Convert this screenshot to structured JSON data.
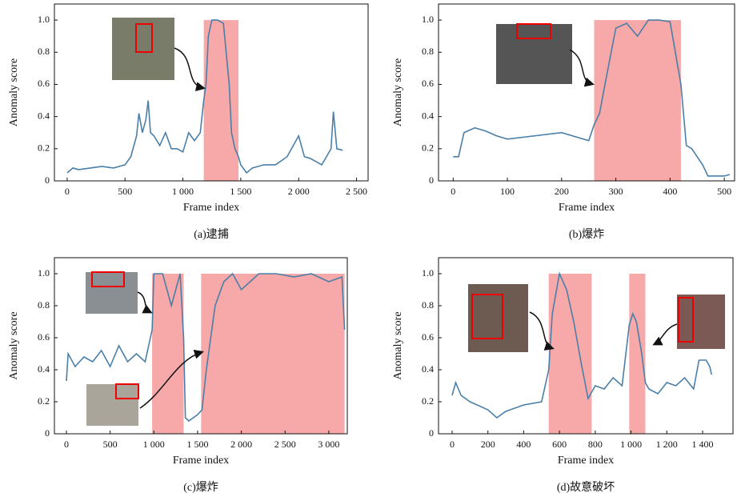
{
  "chart_data": [
    {
      "type": "line",
      "caption": "(a)逮捕",
      "xlabel": "Frame index",
      "ylabel": "Anomaly score",
      "color": "#4a7fa8",
      "shade_color": "#f7a8a8",
      "x": [
        0,
        50,
        100,
        200,
        300,
        400,
        500,
        550,
        600,
        620,
        650,
        680,
        700,
        720,
        750,
        800,
        850,
        900,
        950,
        1000,
        1050,
        1100,
        1150,
        1180,
        1200,
        1220,
        1250,
        1300,
        1350,
        1400,
        1420,
        1450,
        1480,
        1500,
        1550,
        1600,
        1700,
        1800,
        1900,
        2000,
        2050,
        2100,
        2200,
        2280,
        2300,
        2330,
        2380
      ],
      "values": [
        0.05,
        0.08,
        0.07,
        0.08,
        0.09,
        0.08,
        0.1,
        0.15,
        0.28,
        0.42,
        0.3,
        0.38,
        0.5,
        0.3,
        0.28,
        0.22,
        0.3,
        0.2,
        0.2,
        0.18,
        0.3,
        0.25,
        0.3,
        0.5,
        0.6,
        0.9,
        1.0,
        1.0,
        0.98,
        0.6,
        0.3,
        0.2,
        0.15,
        0.1,
        0.05,
        0.08,
        0.1,
        0.1,
        0.15,
        0.28,
        0.15,
        0.14,
        0.1,
        0.2,
        0.43,
        0.2,
        0.19
      ],
      "anomaly_ranges": [
        [
          1180,
          1480
        ]
      ],
      "xlim": [
        -110,
        2600
      ],
      "xticks": [
        0,
        500,
        {
          "value": 1000,
          "label": "1 000"
        },
        {
          "value": 1500,
          "label": "1 500"
        },
        {
          "value": 2000,
          "label": "2 000"
        },
        {
          "value": 2500,
          "label": "2 500"
        }
      ],
      "ylim": [
        0,
        1.1
      ],
      "yticks": [
        0,
        0.2,
        0.4,
        0.6,
        0.8,
        {
          "value": 1,
          "label": "1.0"
        }
      ]
    },
    {
      "type": "line",
      "caption": "(b)爆炸",
      "xlabel": "Frame index",
      "ylabel": "Anomaly score",
      "color": "#4a7fa8",
      "shade_color": "#f7a8a8",
      "x": [
        0,
        10,
        20,
        40,
        60,
        80,
        100,
        150,
        200,
        250,
        260,
        270,
        280,
        300,
        320,
        340,
        360,
        380,
        400,
        420,
        430,
        440,
        450,
        460,
        470,
        500,
        510
      ],
      "values": [
        0.15,
        0.15,
        0.3,
        0.33,
        0.31,
        0.28,
        0.26,
        0.28,
        0.3,
        0.25,
        0.35,
        0.42,
        0.6,
        0.95,
        0.98,
        0.9,
        1.0,
        1.0,
        0.99,
        0.6,
        0.22,
        0.2,
        0.15,
        0.1,
        0.03,
        0.03,
        0.04
      ],
      "anomaly_ranges": [
        [
          260,
          420
        ]
      ],
      "xlim": [
        -27,
        519
      ],
      "xticks": [
        0,
        100,
        200,
        300,
        400,
        500
      ],
      "ylim": [
        0,
        1.1
      ],
      "yticks": [
        0,
        0.2,
        0.4,
        0.6,
        0.8,
        {
          "value": 1,
          "label": "1.0"
        }
      ]
    },
    {
      "type": "line",
      "caption": "(c)爆炸",
      "xlabel": "Frame index",
      "ylabel": "Anomaly score",
      "color": "#4a7fa8",
      "shade_color": "#f7a8a8",
      "x": [
        0,
        20,
        100,
        200,
        300,
        400,
        500,
        600,
        700,
        800,
        900,
        980,
        1000,
        1100,
        1200,
        1300,
        1340,
        1360,
        1400,
        1500,
        1550,
        1600,
        1650,
        1700,
        1800,
        1900,
        2000,
        2200,
        2400,
        2600,
        2800,
        3000,
        3150,
        3180
      ],
      "values": [
        0.33,
        0.5,
        0.42,
        0.48,
        0.45,
        0.52,
        0.42,
        0.55,
        0.45,
        0.5,
        0.45,
        0.65,
        1.0,
        1.0,
        0.8,
        1.0,
        0.6,
        0.1,
        0.08,
        0.12,
        0.15,
        0.4,
        0.6,
        0.8,
        0.95,
        1.0,
        0.9,
        1.0,
        1.0,
        0.98,
        1.0,
        0.95,
        0.98,
        0.65
      ],
      "anomaly_ranges": [
        [
          980,
          1340
        ],
        [
          1540,
          3180
        ]
      ],
      "xlim": [
        -137,
        3211
      ],
      "xticks": [
        0,
        500,
        {
          "value": 1000,
          "label": "1 000"
        },
        {
          "value": 1500,
          "label": "1 500"
        },
        {
          "value": 2000,
          "label": "2 000"
        },
        {
          "value": 2500,
          "label": "2 500"
        },
        {
          "value": 3000,
          "label": "3 000"
        }
      ],
      "ylim": [
        0,
        1.1
      ],
      "yticks": [
        0,
        0.2,
        0.4,
        0.6,
        0.8,
        {
          "value": 1,
          "label": "1.0"
        }
      ]
    },
    {
      "type": "line",
      "caption": "(d)故意破坏",
      "xlabel": "Frame index",
      "ylabel": "Anomaly score",
      "color": "#4a7fa8",
      "shade_color": "#f7a8a8",
      "x": [
        0,
        20,
        50,
        100,
        200,
        250,
        300,
        400,
        500,
        540,
        560,
        600,
        640,
        680,
        720,
        760,
        800,
        850,
        900,
        950,
        990,
        1010,
        1030,
        1060,
        1080,
        1100,
        1150,
        1200,
        1250,
        1300,
        1350,
        1380,
        1420,
        1440,
        1450
      ],
      "values": [
        0.24,
        0.32,
        0.24,
        0.2,
        0.15,
        0.1,
        0.14,
        0.18,
        0.2,
        0.4,
        0.75,
        1.0,
        0.9,
        0.7,
        0.45,
        0.22,
        0.3,
        0.28,
        0.35,
        0.3,
        0.68,
        0.75,
        0.7,
        0.5,
        0.32,
        0.28,
        0.25,
        0.32,
        0.3,
        0.35,
        0.28,
        0.46,
        0.46,
        0.42,
        0.37
      ],
      "anomaly_ranges": [
        [
          540,
          780
        ],
        [
          990,
          1080
        ]
      ],
      "xlim": [
        -76,
        1570
      ],
      "xticks": [
        0,
        200,
        400,
        600,
        800,
        {
          "value": 1000,
          "label": "1 000"
        },
        {
          "value": 1200,
          "label": "1 200"
        },
        {
          "value": 1400,
          "label": "1 400"
        }
      ],
      "ylim": [
        0,
        1.1
      ],
      "yticks": [
        0,
        0.2,
        0.4,
        0.6,
        0.8,
        {
          "value": 1,
          "label": "1.0"
        }
      ]
    }
  ]
}
